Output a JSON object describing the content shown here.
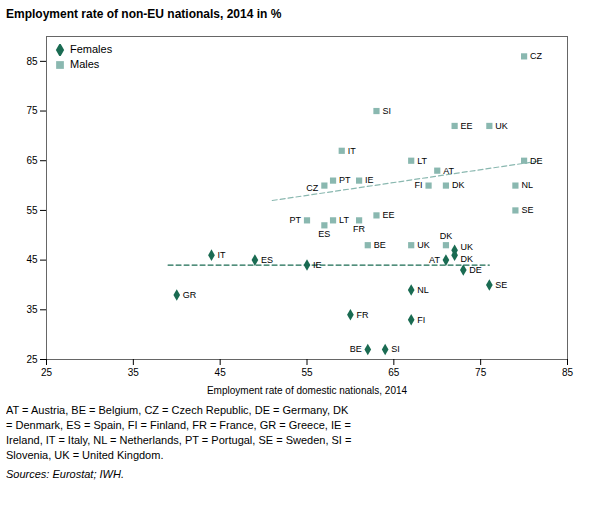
{
  "chart_data": {
    "type": "scatter",
    "title": "Employment rate of non-EU nationals, 2014  in %",
    "xlabel": "Employment rate of domestic nationals, 2014",
    "xlim": [
      25,
      85
    ],
    "ylim": [
      25,
      90
    ],
    "xticks": [
      25,
      35,
      45,
      55,
      65,
      75,
      85
    ],
    "yticks": [
      25,
      35,
      45,
      55,
      65,
      75,
      85
    ],
    "grid": false,
    "legend": "upper left",
    "series": [
      {
        "name": "Females",
        "color": "#1a6b52",
        "marker": "diamond",
        "labels": [
          "GR",
          "IT",
          "ES",
          "IE",
          "BE",
          "SI",
          "FR",
          "NL",
          "FI",
          "AT",
          "DK",
          "UK",
          "DE",
          "SE"
        ],
        "x": [
          40,
          44,
          49,
          55,
          62,
          64,
          60,
          67,
          67,
          71,
          72,
          72,
          73,
          76
        ],
        "y": [
          38,
          46,
          45,
          44,
          27,
          27,
          34,
          39,
          33,
          45,
          46,
          47,
          43,
          40
        ]
      },
      {
        "name": "Males",
        "color": "#8ab8b0",
        "marker": "square",
        "labels": [
          "CZ",
          "SI",
          "EE",
          "UK",
          "IT",
          "LT",
          "IE",
          "PT",
          "CZ",
          "DE",
          "AT",
          "FI",
          "DK",
          "NL",
          "SE",
          "PT",
          "LT",
          "ES",
          "EE",
          "FR",
          "UK",
          "BE",
          "DK"
        ],
        "x": [
          80,
          63,
          72,
          76,
          59,
          67,
          61,
          58,
          57,
          80,
          70,
          69,
          71,
          79,
          79,
          55,
          58,
          57,
          63,
          61,
          67,
          62,
          71
        ],
        "y": [
          86,
          75,
          72,
          72,
          67,
          65,
          61,
          61,
          60,
          65,
          63,
          60,
          60,
          60,
          55,
          53,
          53,
          52,
          54,
          53,
          48,
          48,
          48
        ]
      },
      {
        "type": "line",
        "line_style": "dashed",
        "color": "#1a6b52",
        "x": [
          39,
          76
        ],
        "y": [
          44,
          44
        ]
      },
      {
        "type": "line",
        "line_style": "dashed",
        "color": "#8ab8b0",
        "x": [
          51,
          82
        ],
        "y": [
          57,
          65
        ]
      }
    ],
    "notes": [
      "AT = Austria, BE = Belgium, CZ = Czech Republic, DE = Germany, DK",
      "= Denmark, ES = Spain, FI = Finland, FR = France, GR = Greece, IE =",
      "Ireland, IT = Italy, NL = Netherlands, PT = Portugal, SE = Sweden, SI =",
      "Slovenia, UK = United Kingdom."
    ],
    "source": "Sources:  Eurostat; IWH."
  }
}
